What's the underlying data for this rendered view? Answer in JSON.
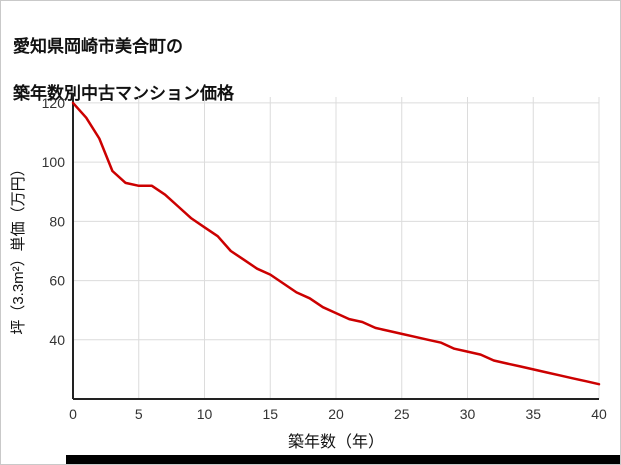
{
  "chart_data": {
    "type": "line",
    "title_lines": [
      "愛知県岡崎市美合町の",
      "築年数別中古マンション価格"
    ],
    "xlabel": "築年数（年）",
    "ylabel": "坪（3.3m²）単価（万円）",
    "x": [
      0,
      1,
      2,
      3,
      4,
      5,
      6,
      7,
      8,
      9,
      10,
      11,
      12,
      13,
      14,
      15,
      16,
      17,
      18,
      19,
      20,
      21,
      22,
      23,
      24,
      25,
      26,
      27,
      28,
      29,
      30,
      31,
      32,
      33,
      34,
      35,
      36,
      37,
      38,
      39,
      40
    ],
    "y": [
      120,
      115,
      108,
      97,
      93,
      92,
      92,
      89,
      85,
      81,
      78,
      75,
      70,
      67,
      64,
      62,
      59,
      56,
      54,
      51,
      49,
      47,
      46,
      44,
      43,
      42,
      41,
      40,
      39,
      37,
      36,
      35,
      33,
      32,
      31,
      30,
      29,
      28,
      27,
      26,
      25
    ],
    "xticks": [
      0,
      5,
      10,
      15,
      20,
      25,
      30,
      35,
      40
    ],
    "yticks": [
      40,
      60,
      80,
      100,
      120
    ],
    "xlim": [
      0,
      40
    ],
    "ylim": [
      20,
      122
    ],
    "line_color": "#cc0000",
    "grid_color": "#dcdcdc",
    "axis_color": "#222",
    "tick_label_color": "#333",
    "grid": true,
    "legend": "none"
  }
}
